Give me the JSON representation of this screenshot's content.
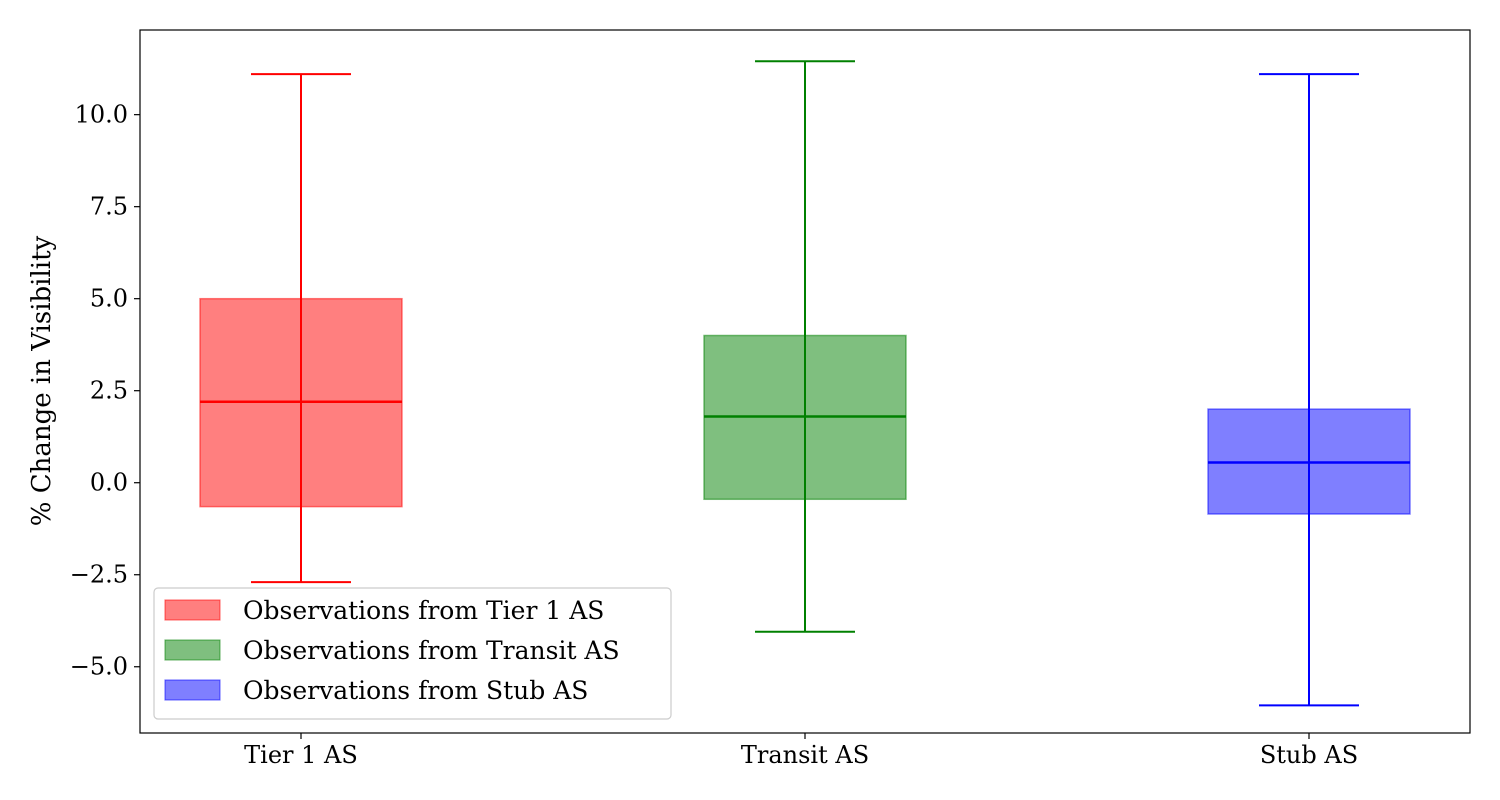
{
  "chart_data": {
    "type": "box",
    "title": "",
    "xlabel": "",
    "ylabel": "% Change in Visibility",
    "ylim": [
      -6.8,
      12.3
    ],
    "yticks": [
      -5.0,
      -2.5,
      0.0,
      2.5,
      5.0,
      7.5,
      10.0
    ],
    "ytick_labels": [
      "−5.0",
      "−2.5",
      "0.0",
      "2.5",
      "5.0",
      "7.5",
      "10.0"
    ],
    "categories": [
      "Tier 1 AS",
      "Transit AS",
      "Stub AS"
    ],
    "boxes": [
      {
        "name": "Tier 1 AS",
        "whisker_low": -2.7,
        "q1": -0.65,
        "median": 2.2,
        "q3": 5.0,
        "whisker_high": 11.1,
        "color": "#ff0000"
      },
      {
        "name": "Transit AS",
        "whisker_low": -4.05,
        "q1": -0.45,
        "median": 1.8,
        "q3": 4.0,
        "whisker_high": 11.45,
        "color": "#008000"
      },
      {
        "name": "Stub AS",
        "whisker_low": -6.05,
        "q1": -0.85,
        "median": 0.55,
        "q3": 2.0,
        "whisker_high": 11.1,
        "color": "#0000ff"
      }
    ],
    "legend": {
      "position": "lower-left",
      "entries": [
        {
          "label": "Observations from Tier 1 AS",
          "color": "#ff0000"
        },
        {
          "label": "Observations from Transit AS",
          "color": "#008000"
        },
        {
          "label": "Observations from Stub AS",
          "color": "#0000ff"
        }
      ]
    }
  }
}
